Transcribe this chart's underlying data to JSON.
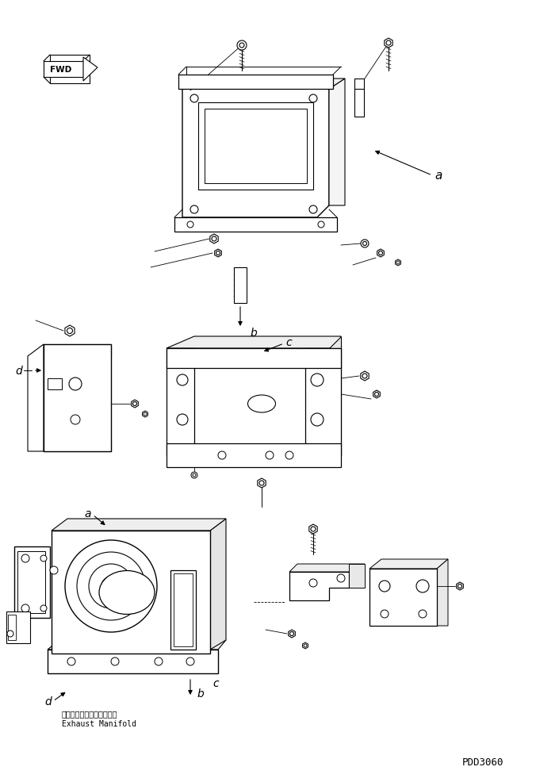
{
  "background_color": "#ffffff",
  "line_color": "#000000",
  "fig_width": 6.76,
  "fig_height": 9.87,
  "dpi": 100,
  "labels": {
    "fwd_text": "FWD",
    "label_a": "a",
    "label_b": "b",
    "label_c": "c",
    "label_d": "d",
    "japanese_text": "エキゾーストマニホールド",
    "english_text": "Exhaust Manifold",
    "part_number": "PDD3060"
  }
}
